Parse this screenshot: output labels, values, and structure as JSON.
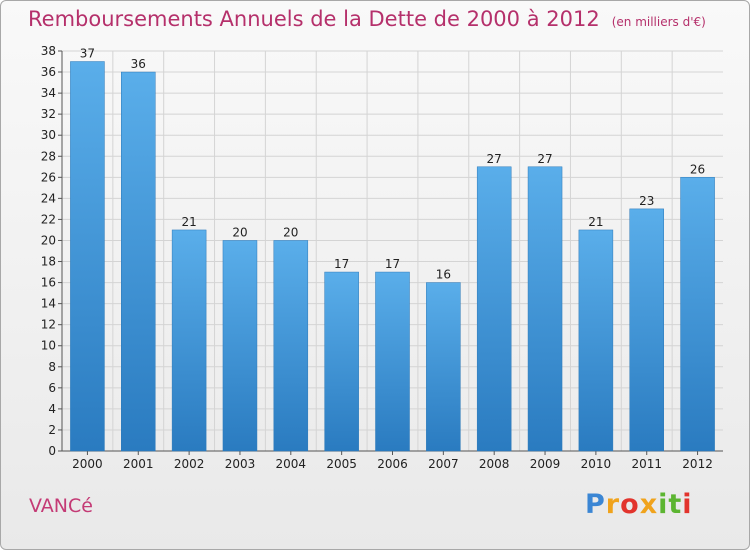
{
  "title": "Remboursements Annuels de la Dette de 2000 à 2012",
  "unit": "(en milliers d'€)",
  "commune": "VANCé",
  "logo": {
    "text": "Proxiti",
    "colors": [
      "#3b86d4",
      "#f0a31c",
      "#e2342d",
      "#5cb531"
    ]
  },
  "chart_data": {
    "type": "bar",
    "categories": [
      "2000",
      "2001",
      "2002",
      "2003",
      "2004",
      "2005",
      "2006",
      "2007",
      "2008",
      "2009",
      "2010",
      "2011",
      "2012"
    ],
    "values": [
      37,
      36,
      21,
      20,
      20,
      17,
      17,
      16,
      27,
      27,
      21,
      23,
      26
    ],
    "ylim": [
      0,
      38
    ],
    "yticks": [
      0,
      2,
      4,
      6,
      8,
      10,
      12,
      14,
      16,
      18,
      20,
      22,
      24,
      26,
      28,
      30,
      32,
      34,
      36,
      38
    ],
    "grid": true,
    "bar_color_top": "#5aaeea",
    "bar_color_bottom": "#2a7bc0"
  }
}
